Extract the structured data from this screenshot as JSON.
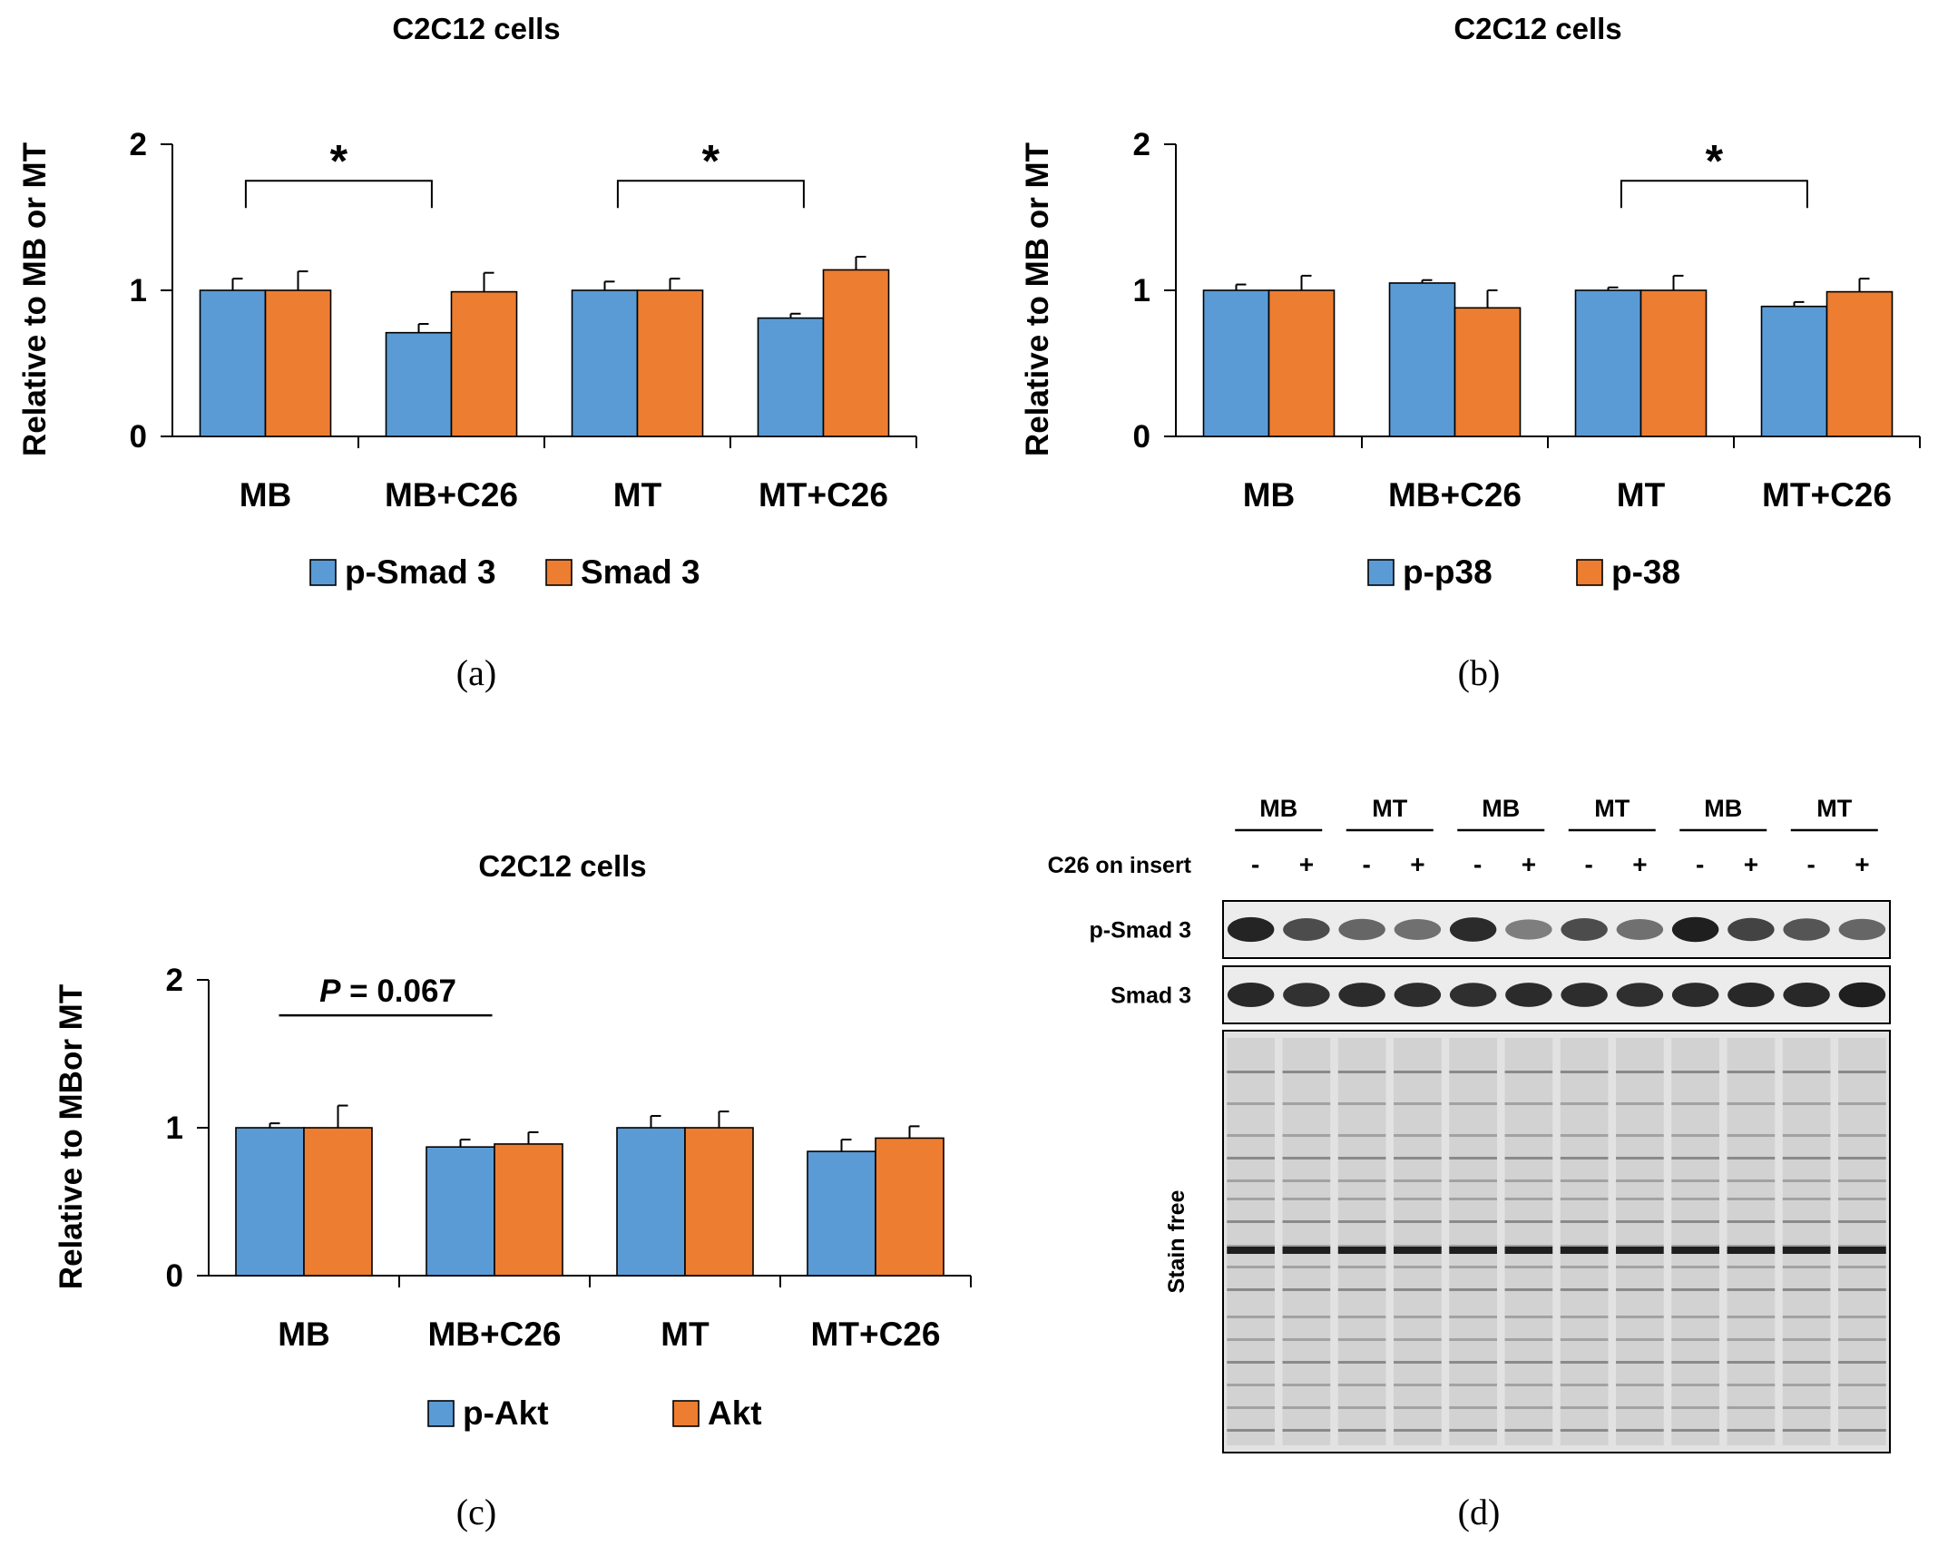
{
  "colors": {
    "series1": "#5b9bd5",
    "series2": "#ed7d31",
    "axis": "#000000"
  },
  "panel_labels": [
    "(a)",
    "(b)",
    "(c)",
    "(d)"
  ],
  "chart_data": [
    {
      "type": "bar",
      "title": "C2C12 cells",
      "ylabel": "Relative to MB or MT",
      "ylim": [
        0,
        2
      ],
      "yticks": [
        "0",
        "1",
        "2"
      ],
      "categories": [
        "MB",
        "MB+C26",
        "MT",
        "MT+C26"
      ],
      "series": [
        {
          "name": "p-Smad 3",
          "values": [
            1.0,
            0.71,
            1.0,
            0.81
          ],
          "errors": [
            0.08,
            0.06,
            0.06,
            0.03
          ]
        },
        {
          "name": "Smad 3",
          "values": [
            1.0,
            0.99,
            1.0,
            1.14
          ],
          "errors": [
            0.13,
            0.13,
            0.08,
            0.09
          ]
        }
      ],
      "significance": [
        {
          "from": 0,
          "to": 1,
          "label": "*"
        },
        {
          "from": 2,
          "to": 3,
          "label": "*"
        }
      ],
      "legend": "bottom"
    },
    {
      "type": "bar",
      "title": "C2C12 cells",
      "ylabel": "Relative to MB or MT",
      "ylim": [
        0,
        2
      ],
      "yticks": [
        "0",
        "1",
        "2"
      ],
      "categories": [
        "MB",
        "MB+C26",
        "MT",
        "MT+C26"
      ],
      "series": [
        {
          "name": "p-p38",
          "values": [
            1.0,
            1.05,
            1.0,
            0.89
          ],
          "errors": [
            0.04,
            0.02,
            0.02,
            0.03
          ]
        },
        {
          "name": "p-38",
          "values": [
            1.0,
            0.88,
            1.0,
            0.99
          ],
          "errors": [
            0.1,
            0.12,
            0.1,
            0.09
          ]
        }
      ],
      "significance": [
        {
          "from": 2,
          "to": 3,
          "label": "*"
        }
      ],
      "legend": "bottom"
    },
    {
      "type": "bar",
      "title": "C2C12 cells",
      "ylabel": "Relative to MBor MT",
      "ylim": [
        0,
        2
      ],
      "yticks": [
        "0",
        "1",
        "2"
      ],
      "categories": [
        "MB",
        "MB+C26",
        "MT",
        "MT+C26"
      ],
      "series": [
        {
          "name": "p-Akt",
          "values": [
            1.0,
            0.87,
            1.0,
            0.84
          ],
          "errors": [
            0.03,
            0.05,
            0.08,
            0.08
          ]
        },
        {
          "name": "Akt",
          "values": [
            1.0,
            0.89,
            1.0,
            0.93
          ],
          "errors": [
            0.15,
            0.08,
            0.11,
            0.08
          ]
        }
      ],
      "significance": [
        {
          "from": 0,
          "to": 1,
          "label_italic": "P",
          "label_rest": " = 0.067"
        }
      ],
      "legend": "bottom"
    }
  ],
  "blot": {
    "group_labels": [
      "MB",
      "MT",
      "MB",
      "MT",
      "MB",
      "MT"
    ],
    "row_header": "C26 on insert",
    "lane_signs": [
      "-",
      "+",
      "-",
      "+",
      "-",
      "+",
      "-",
      "+",
      "-",
      "+",
      "-",
      "+"
    ],
    "bands": [
      {
        "label": "p-Smad 3",
        "intensity": [
          0.92,
          0.7,
          0.55,
          0.5,
          0.88,
          0.42,
          0.7,
          0.5,
          0.95,
          0.75,
          0.65,
          0.55
        ]
      },
      {
        "label": "Smad 3",
        "intensity": [
          0.9,
          0.85,
          0.88,
          0.87,
          0.86,
          0.88,
          0.87,
          0.86,
          0.88,
          0.9,
          0.9,
          0.95
        ]
      }
    ],
    "stain_label": "Stain free"
  }
}
